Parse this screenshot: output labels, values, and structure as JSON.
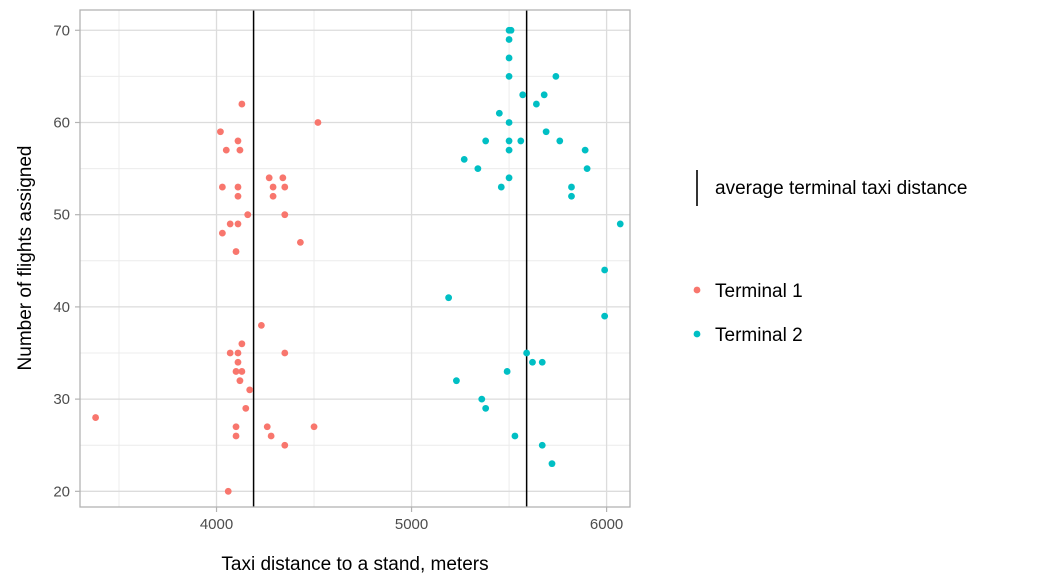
{
  "chart_data": {
    "type": "scatter",
    "title": "",
    "xlabel": "Taxi distance to a stand, meters",
    "ylabel": "Number of flights assigned",
    "xlim": [
      3300,
      6120
    ],
    "ylim": [
      18.3,
      72.2
    ],
    "xticks": [
      4000,
      5000,
      6000
    ],
    "yticks": [
      20,
      30,
      40,
      50,
      60,
      70
    ],
    "grid": true,
    "legend_position": "right",
    "reference_lines": {
      "label": "average terminal taxi distance",
      "color": "#000000",
      "x": [
        4190,
        5590
      ]
    },
    "series": [
      {
        "name": "Terminal 1",
        "color": "#F8766D",
        "points": [
          [
            4130,
            62
          ],
          [
            4020,
            59
          ],
          [
            4520,
            60
          ],
          [
            4050,
            57
          ],
          [
            4110,
            58
          ],
          [
            4120,
            57
          ],
          [
            4270,
            54
          ],
          [
            4340,
            54
          ],
          [
            4290,
            53
          ],
          [
            4350,
            53
          ],
          [
            4030,
            53
          ],
          [
            4110,
            53
          ],
          [
            4290,
            52
          ],
          [
            4110,
            52
          ],
          [
            4350,
            50
          ],
          [
            4160,
            50
          ],
          [
            4070,
            49
          ],
          [
            4110,
            49
          ],
          [
            4030,
            48
          ],
          [
            4430,
            47
          ],
          [
            4100,
            46
          ],
          [
            4230,
            38
          ],
          [
            4130,
            36
          ],
          [
            4070,
            35
          ],
          [
            4110,
            35
          ],
          [
            4350,
            35
          ],
          [
            4110,
            34
          ],
          [
            4100,
            33
          ],
          [
            4130,
            33
          ],
          [
            4120,
            32
          ],
          [
            4170,
            31
          ],
          [
            4150,
            29
          ],
          [
            3380,
            28
          ],
          [
            4100,
            27
          ],
          [
            4260,
            27
          ],
          [
            4500,
            27
          ],
          [
            4100,
            26
          ],
          [
            4280,
            26
          ],
          [
            4350,
            25
          ],
          [
            4060,
            20
          ]
        ]
      },
      {
        "name": "Terminal 2",
        "color": "#00BFC4",
        "points": [
          [
            5500,
            70
          ],
          [
            5510,
            70
          ],
          [
            5500,
            69
          ],
          [
            5500,
            67
          ],
          [
            5500,
            65
          ],
          [
            5740,
            65
          ],
          [
            5570,
            63
          ],
          [
            5680,
            63
          ],
          [
            5640,
            62
          ],
          [
            5450,
            61
          ],
          [
            5500,
            60
          ],
          [
            5380,
            58
          ],
          [
            5500,
            58
          ],
          [
            5560,
            58
          ],
          [
            5760,
            58
          ],
          [
            5690,
            59
          ],
          [
            5890,
            57
          ],
          [
            5500,
            57
          ],
          [
            5270,
            56
          ],
          [
            5340,
            55
          ],
          [
            5900,
            55
          ],
          [
            5500,
            54
          ],
          [
            5460,
            53
          ],
          [
            5820,
            53
          ],
          [
            5820,
            52
          ],
          [
            6070,
            49
          ],
          [
            5990,
            44
          ],
          [
            5190,
            41
          ],
          [
            5990,
            39
          ],
          [
            5590,
            35
          ],
          [
            5620,
            34
          ],
          [
            5670,
            34
          ],
          [
            5490,
            33
          ],
          [
            5230,
            32
          ],
          [
            5360,
            30
          ],
          [
            5380,
            29
          ],
          [
            5530,
            26
          ],
          [
            5670,
            25
          ],
          [
            5720,
            23
          ]
        ]
      }
    ]
  }
}
